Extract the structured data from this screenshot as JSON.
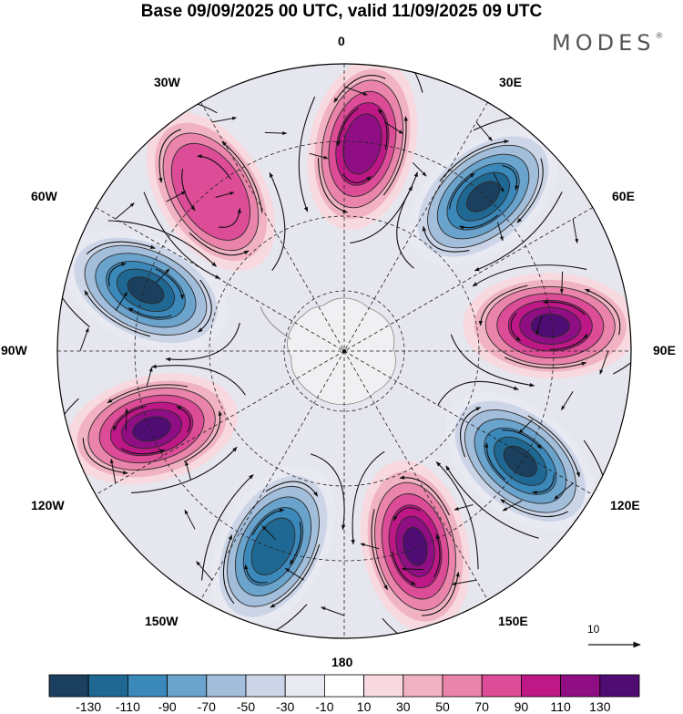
{
  "title": "Base 09/09/2025 00 UTC, valid 11/09/2025 09 UTC",
  "logo": {
    "text": "MODES",
    "mark": "®"
  },
  "labels": {
    "lon0": "0",
    "lon30e": "30E",
    "lon60e": "60E",
    "lon90e": "90E",
    "lon120e": "120E",
    "lon150e": "150E",
    "lon180": "180",
    "lon150w": "150W",
    "lon120w": "120W",
    "lon90w": "90W",
    "lon60w": "60W",
    "lon30w": "30W"
  },
  "reference_vector": {
    "label": "10"
  },
  "colorbar": {
    "colors": [
      "#1b3f5e",
      "#1f6893",
      "#3b88bb",
      "#6aa3cc",
      "#a3bedb",
      "#ccd5e7",
      "#e9e9f2",
      "#ffffff",
      "#f7d9df",
      "#f1b3c4",
      "#ea84aa",
      "#dc4c97",
      "#bd1886",
      "#8f0e84",
      "#4f0c72"
    ],
    "ticks": [
      "-130",
      "-110",
      "-90",
      "-70",
      "-50",
      "-30",
      "-10",
      "10",
      "30",
      "50",
      "70",
      "90",
      "110",
      "130"
    ]
  },
  "anomaly_centers": [
    {
      "lon": 42,
      "sign": "negative",
      "value": -130
    },
    {
      "lon": 83,
      "sign": "positive",
      "value": 130
    },
    {
      "lon": 122,
      "sign": "negative",
      "value": -130
    },
    {
      "lon": 160,
      "sign": "positive",
      "value": 130
    },
    {
      "lon": -160,
      "sign": "negative",
      "value": -110
    },
    {
      "lon": -112,
      "sign": "positive",
      "value": 130
    },
    {
      "lon": -73,
      "sign": "negative",
      "value": -130
    },
    {
      "lon": -40,
      "sign": "positive",
      "value": 70
    },
    {
      "lon": 5,
      "sign": "positive",
      "value": 110
    }
  ]
}
